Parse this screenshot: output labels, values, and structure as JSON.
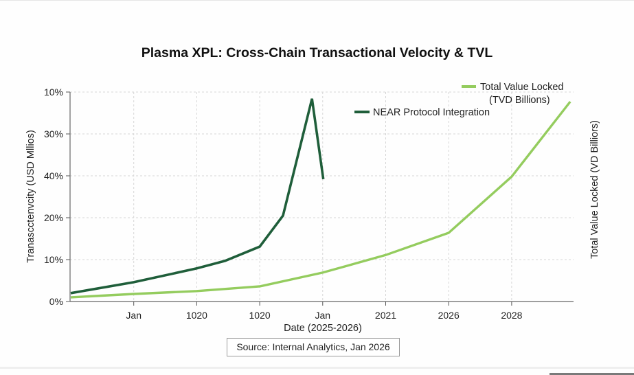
{
  "chart_data": {
    "type": "line",
    "title": "Plasma XPL: Cross-Chain Transactional Velocity & TVL",
    "xlabel": "Date (2025-2026)",
    "ylabel": "Tranascctenvcity (USD Mllios)",
    "y2label": "Total Value Locked (VD Billiors)",
    "x_tick_labels": [
      "Jan",
      "1020",
      "1020",
      "Jan",
      "2021",
      "2026",
      "2028"
    ],
    "x_tick_positions": [
      1,
      2,
      3,
      4,
      5,
      6,
      7
    ],
    "xlim": [
      0,
      8
    ],
    "y_tick_labels": [
      "0%",
      "10%",
      "20%",
      "40%",
      "30%",
      "10%"
    ],
    "y_tick_positions": [
      0,
      10,
      20,
      30,
      40,
      50
    ],
    "ylim": [
      0,
      50
    ],
    "grid": true,
    "legend_placement": "top-right",
    "series": [
      {
        "name": "NEAR Protocol Integration",
        "color": "#1f5e3a",
        "x": [
          0,
          1,
          2,
          2.45,
          3,
          3.37,
          3.83,
          4.01
        ],
        "values": [
          2.0,
          4.6,
          7.9,
          9.7,
          13.1,
          20.5,
          48.4,
          29.2
        ]
      },
      {
        "name": "Total Value Locked (TVD Billions)",
        "color": "#94cc5e",
        "x": [
          0,
          1,
          2,
          3,
          4,
          5,
          6,
          7,
          7.93
        ],
        "values": [
          1.0,
          1.8,
          2.5,
          3.6,
          6.9,
          11.1,
          16.4,
          29.8,
          47.7
        ]
      }
    ],
    "legend": [
      {
        "label": "Total Value Locked",
        "label_line2": "(TVD Billions)",
        "color": "#94cc5e"
      },
      {
        "label": "NEAR Protocol Integration",
        "color": "#1f5e3a"
      }
    ]
  },
  "footer": {
    "source": "Source: Internal Analytics, Jan 2026"
  }
}
